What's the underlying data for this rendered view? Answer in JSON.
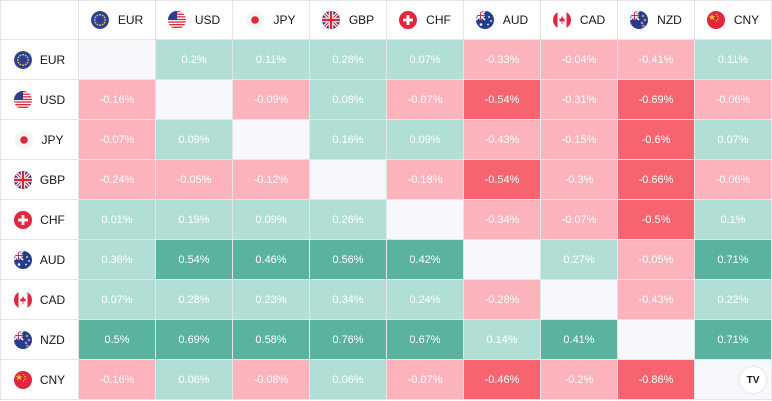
{
  "currencies": [
    {
      "code": "EUR",
      "flag": "eu-flag-icon"
    },
    {
      "code": "USD",
      "flag": "us-flag-icon"
    },
    {
      "code": "JPY",
      "flag": "jp-flag-icon"
    },
    {
      "code": "GBP",
      "flag": "gb-flag-icon"
    },
    {
      "code": "CHF",
      "flag": "ch-flag-icon"
    },
    {
      "code": "AUD",
      "flag": "au-flag-icon"
    },
    {
      "code": "CAD",
      "flag": "ca-flag-icon"
    },
    {
      "code": "NZD",
      "flag": "nz-flag-icon"
    },
    {
      "code": "CNY",
      "flag": "cn-flag-icon"
    }
  ],
  "rows": [
    [
      "",
      "0.2%",
      "0.11%",
      "0.28%",
      "0.07%",
      "-0.33%",
      "-0.04%",
      "-0.41%",
      "0.11%"
    ],
    [
      "-0.16%",
      "",
      "-0.09%",
      "0.08%",
      "-0.07%",
      "-0.54%",
      "-0.31%",
      "-0.69%",
      "-0.06%"
    ],
    [
      "-0.07%",
      "0.09%",
      "",
      "0.16%",
      "0.09%",
      "-0.43%",
      "-0.15%",
      "-0.6%",
      "0.07%"
    ],
    [
      "-0.24%",
      "-0.05%",
      "-0.12%",
      "",
      "-0.18%",
      "-0.54%",
      "-0.3%",
      "-0.66%",
      "-0.06%"
    ],
    [
      "0.01%",
      "0.19%",
      "0.09%",
      "0.26%",
      "",
      "-0.34%",
      "-0.07%",
      "-0.5%",
      "0.1%"
    ],
    [
      "0.36%",
      "0.54%",
      "0.46%",
      "0.56%",
      "0.42%",
      "",
      "0.27%",
      "-0.05%",
      "0.71%"
    ],
    [
      "0.07%",
      "0.28%",
      "0.23%",
      "0.34%",
      "0.24%",
      "-0.28%",
      "",
      "-0.43%",
      "0.22%"
    ],
    [
      "0.5%",
      "0.69%",
      "0.58%",
      "0.76%",
      "0.67%",
      "0.14%",
      "0.41%",
      "",
      "0.71%"
    ],
    [
      "-0.16%",
      "0.06%",
      "-0.08%",
      "0.06%",
      "-0.07%",
      "-0.46%",
      "-0.2%",
      "-0.86%",
      ""
    ]
  ],
  "colors": {
    "pos_light": "#b2dfd5",
    "pos_strong": "#5ab39e",
    "neg_light": "#fcb3bb",
    "neg_strong": "#f7646f",
    "diagonal": "#f7f8fb"
  },
  "logo": {
    "text": "TV",
    "icon": "tradingview-logo-icon"
  }
}
